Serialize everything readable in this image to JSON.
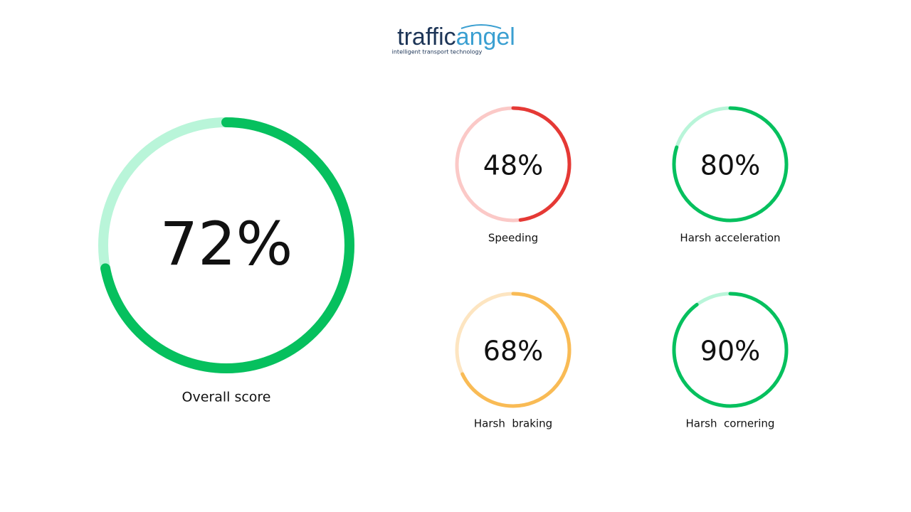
{
  "header": {
    "brand_first": "traffic",
    "brand_second": "angel",
    "tagline": "intelligent transport technology"
  },
  "gauges": [
    {
      "label": "Overall score",
      "value": 72,
      "value_label": "72%",
      "color": "#06c05e",
      "track_color": "#b9f5d9"
    },
    {
      "label": "Speeding",
      "value": 48,
      "value_label": "48%",
      "color": "#e53935",
      "track_color": "#fbc9c7"
    },
    {
      "label": "Harsh acceleration",
      "value": 80,
      "value_label": "80%",
      "color": "#06c05e",
      "track_color": "#b9f5d9"
    },
    {
      "label": "Harsh  braking",
      "value": 68,
      "value_label": "68%",
      "color": "#f9bb55",
      "track_color": "#fde5c1"
    },
    {
      "label": "Harsh  cornering",
      "value": 90,
      "value_label": "90%",
      "color": "#06c05e",
      "track_color": "#b9f5d9"
    }
  ]
}
